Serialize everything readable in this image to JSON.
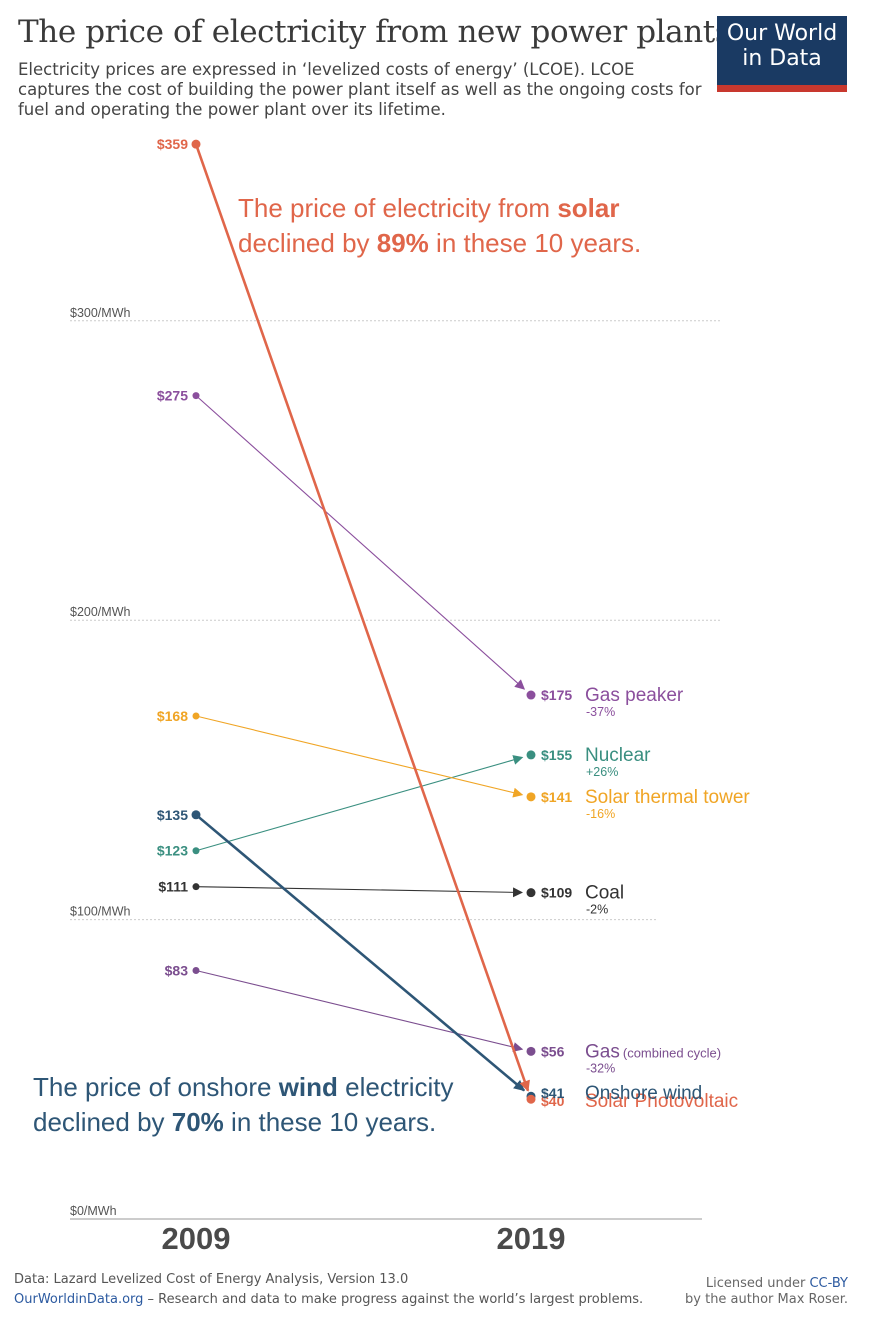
{
  "header": {
    "title": "The price of electricity from new power plants",
    "subtitle": "Electricity prices are expressed in ‘levelized costs of energy’ (LCOE). LCOE captures the cost of building the power plant itself as well as the ongoing costs for fuel and operating the power plant over its lifetime.",
    "logo_line1": "Our World",
    "logo_line2": "in Data"
  },
  "colors": {
    "solar_pv": "#e0664a",
    "gas_peaker": "#8b4f9d",
    "gas_cc": "#7b4e8f",
    "nuclear": "#3a8f80",
    "solar_thermal": "#f0a525",
    "coal": "#333333",
    "wind": "#2e5676",
    "grid": "#cccccc"
  },
  "chart_data": {
    "type": "line",
    "x": [
      "2009",
      "2019"
    ],
    "ylim": [
      0,
      359
    ],
    "y_ticks": [
      {
        "value": 0,
        "label": "$0/MWh"
      },
      {
        "value": 100,
        "label": "$100/MWh"
      },
      {
        "value": 200,
        "label": "$200/MWh"
      },
      {
        "value": 300,
        "label": "$300/MWh"
      }
    ],
    "series": [
      {
        "key": "solar_pv",
        "name": "Solar Photovoltaic",
        "note": "",
        "values": [
          359,
          40
        ],
        "label_2009": "$359",
        "label_2019": "$40",
        "change": "",
        "color": "#e0664a",
        "thick": true
      },
      {
        "key": "gas_peaker",
        "name": "Gas peaker",
        "note": "",
        "values": [
          275,
          175
        ],
        "label_2009": "$275",
        "label_2019": "$175",
        "change": "-37%",
        "color": "#8b4f9d",
        "thick": false
      },
      {
        "key": "solar_thermal",
        "name": "Solar thermal tower",
        "note": "",
        "values": [
          168,
          141
        ],
        "label_2009": "$168",
        "label_2019": "$141",
        "change": "-16%",
        "color": "#f0a525",
        "thick": false
      },
      {
        "key": "wind",
        "name": "Onshore wind",
        "note": "",
        "values": [
          135,
          41
        ],
        "label_2009": "$135",
        "label_2019": "$41",
        "change": "",
        "color": "#2e5676",
        "thick": true
      },
      {
        "key": "nuclear",
        "name": "Nuclear",
        "note": "",
        "values": [
          123,
          155
        ],
        "label_2009": "$123",
        "label_2019": "$155",
        "change": "+26%",
        "color": "#3a8f80",
        "thick": false
      },
      {
        "key": "coal",
        "name": "Coal",
        "note": "",
        "values": [
          111,
          109
        ],
        "label_2009": "$111",
        "label_2019": "$109",
        "change": "-2%",
        "color": "#333333",
        "thick": false
      },
      {
        "key": "gas_cc",
        "name": "Gas",
        "note": "(combined cycle)",
        "values": [
          83,
          56
        ],
        "label_2009": "$83",
        "label_2019": "$56",
        "change": "-32%",
        "color": "#7b4e8f",
        "thick": false
      }
    ],
    "annotations": {
      "solar": {
        "line1": [
          "The price of electricity from ",
          "solar"
        ],
        "line2": [
          "declined by ",
          "89%",
          " in these 10 years."
        ]
      },
      "wind": {
        "line1": [
          "The price of onshore ",
          "wind",
          " electricity"
        ],
        "line2": [
          "declined by ",
          "70%",
          " in these 10 years."
        ]
      }
    }
  },
  "footer": {
    "source": "Data: Lazard Levelized Cost of Energy Analysis, Version 13.0",
    "site": "OurWorldinData.org",
    "tagline": " – Research and data to make progress against the world’s largest problems.",
    "license_prefix": "Licensed under ",
    "license": "CC-BY",
    "author": "by the author Max Roser."
  }
}
